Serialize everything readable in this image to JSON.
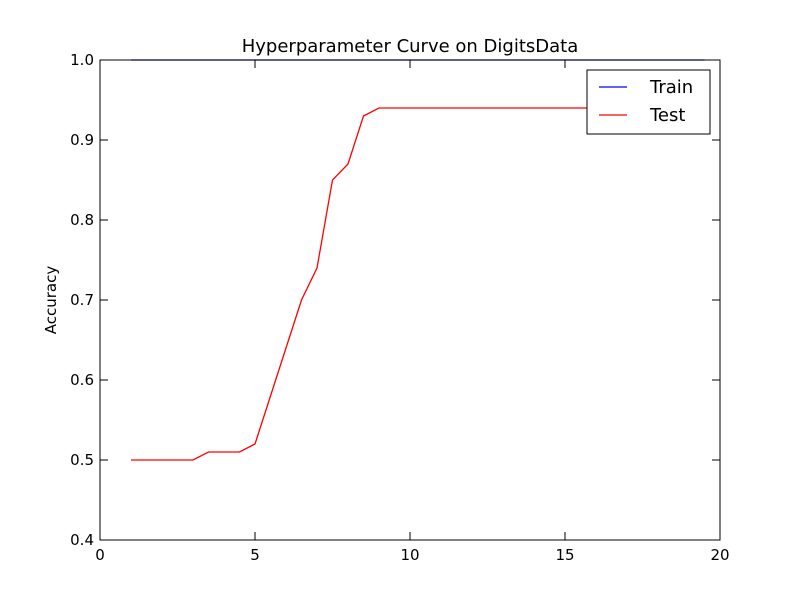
{
  "chart_data": {
    "type": "line",
    "title": "Hyperparameter Curve on DigitsData",
    "xlabel": "",
    "ylabel": "Accuracy",
    "xlim": [
      0,
      20
    ],
    "ylim": [
      0.4,
      1.0
    ],
    "xticks": [
      0,
      5,
      10,
      15,
      20
    ],
    "yticks": [
      0.4,
      0.5,
      0.6,
      0.7,
      0.8,
      0.9,
      1.0
    ],
    "grid": false,
    "legend_position": "top-right",
    "series": [
      {
        "name": "Train",
        "color": "#0000ff",
        "x": [
          1,
          1.5,
          2,
          2.5,
          3,
          3.5,
          4,
          4.5,
          5,
          5.5,
          6,
          6.5,
          7,
          7.5,
          8,
          8.5,
          9,
          9.5,
          10,
          10.5,
          11,
          11.5,
          12,
          12.5,
          13,
          13.5,
          14,
          14.5,
          15,
          15.5,
          16,
          16.5,
          17,
          17.5,
          18,
          18.5,
          19,
          19.5
        ],
        "y": [
          1.0,
          1.0,
          1.0,
          1.0,
          1.0,
          1.0,
          1.0,
          1.0,
          1.0,
          1.0,
          1.0,
          1.0,
          1.0,
          1.0,
          1.0,
          1.0,
          1.0,
          1.0,
          1.0,
          1.0,
          1.0,
          1.0,
          1.0,
          1.0,
          1.0,
          1.0,
          1.0,
          1.0,
          1.0,
          1.0,
          1.0,
          1.0,
          1.0,
          1.0,
          1.0,
          1.0,
          1.0,
          1.0
        ]
      },
      {
        "name": "Test",
        "color": "#ff0000",
        "x": [
          1,
          1.5,
          2,
          2.5,
          3,
          3.5,
          4,
          4.5,
          5,
          5.5,
          6,
          6.5,
          7,
          7.5,
          8,
          8.5,
          9,
          9.5,
          10,
          10.5,
          11,
          11.5,
          12,
          12.5,
          13,
          13.5,
          14,
          14.5,
          15,
          15.5,
          16,
          16.5,
          17,
          17.5,
          18,
          18.5,
          19,
          19.5
        ],
        "y": [
          0.5,
          0.5,
          0.5,
          0.5,
          0.5,
          0.51,
          0.51,
          0.51,
          0.52,
          0.58,
          0.64,
          0.7,
          0.74,
          0.85,
          0.87,
          0.93,
          0.94,
          0.94,
          0.94,
          0.94,
          0.94,
          0.94,
          0.94,
          0.94,
          0.94,
          0.94,
          0.94,
          0.94,
          0.94,
          0.94,
          0.94,
          0.94,
          0.94,
          0.94,
          0.94,
          0.94,
          0.94,
          0.94
        ]
      }
    ]
  }
}
